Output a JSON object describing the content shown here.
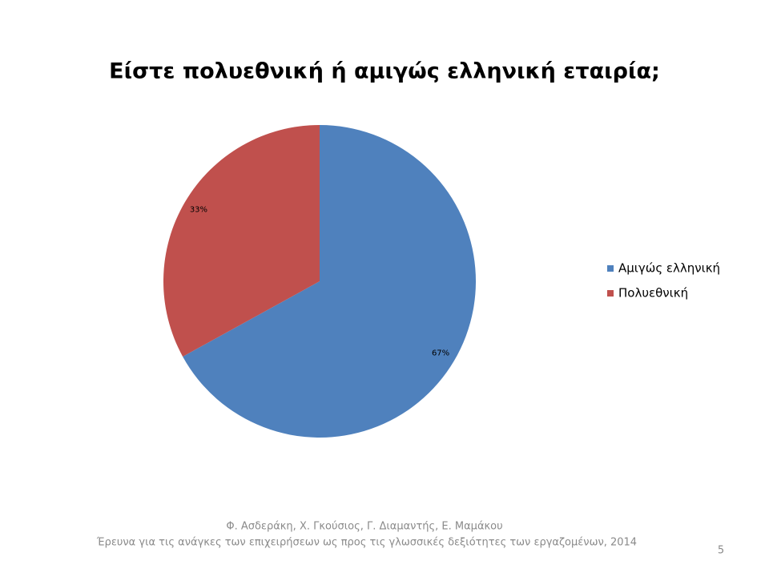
{
  "chart_data": {
    "type": "pie",
    "title": "Είστε πολυεθνική ή αμιγώς ελληνική εταιρία;",
    "categories": [
      "Αμιγώς ελληνική",
      "Πολυεθνική"
    ],
    "values": [
      67,
      33
    ],
    "value_labels": [
      "67%",
      "33%"
    ],
    "colors": [
      "#4f81bd",
      "#c0504d"
    ],
    "legend": "right"
  },
  "footer": {
    "authors": "Φ. Ασδεράκη, Χ. Γκούσιος, Γ. Διαμαντής, Ε. Μαμάκου",
    "citation": "Έρευνα για τις ανάγκες των επιχειρήσεων ως προς τις γλωσσικές δεξιότητες των εργαζομένων, 2014",
    "page_number": 5
  }
}
